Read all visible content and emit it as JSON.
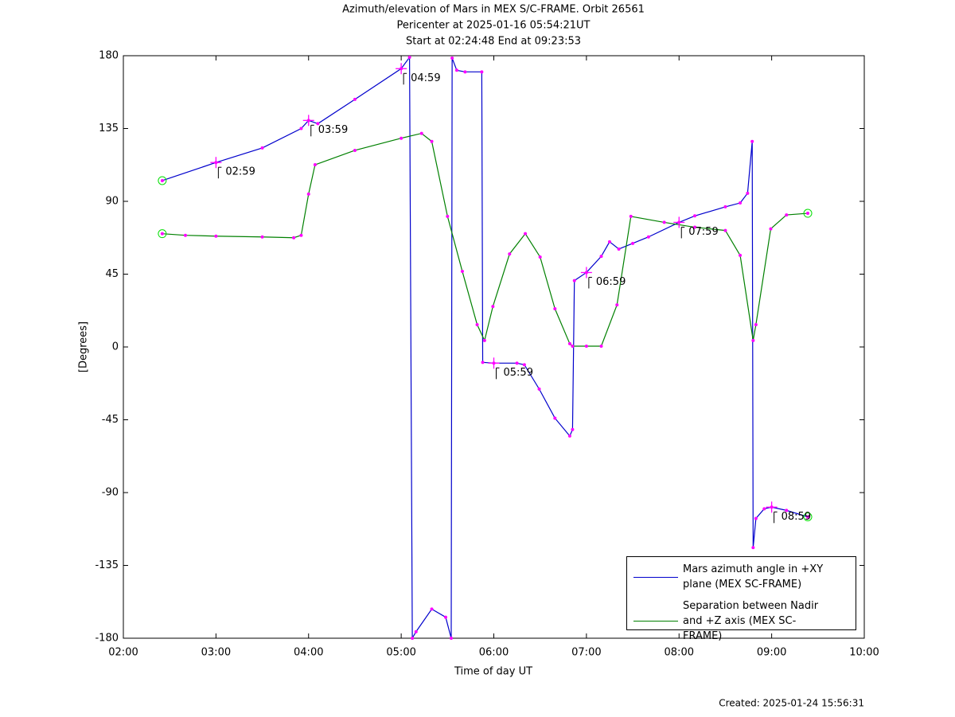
{
  "chart_data": {
    "type": "line",
    "title": "Azimuth/elevation of Mars in MEX S/C-FRAME.  Orbit 26561",
    "subtitle": "Pericenter at 2025-01-16 05:54:21UT",
    "subtitle2": "Start at 02:24:48 End at 09:23:53",
    "xlabel": "Time of day UT",
    "ylabel": "[Degrees]",
    "footnote": "Created: 2025-01-24 15:56:31",
    "xlim": [
      2,
      10
    ],
    "xticks": [
      {
        "value": 2,
        "label": "02:00"
      },
      {
        "value": 3,
        "label": "03:00"
      },
      {
        "value": 4,
        "label": "04:00"
      },
      {
        "value": 5,
        "label": "05:00"
      },
      {
        "value": 6,
        "label": "06:00"
      },
      {
        "value": 7,
        "label": "07:00"
      },
      {
        "value": 8,
        "label": "08:00"
      },
      {
        "value": 9,
        "label": "09:00"
      },
      {
        "value": 10,
        "label": "10:00"
      }
    ],
    "ylim": [
      -180,
      180
    ],
    "yticks": [
      180,
      135,
      90,
      45,
      0,
      -45,
      -90,
      -135,
      -180
    ],
    "grid": false,
    "legend": "lower right",
    "series": [
      {
        "name": "Mars azimuth angle in +XY plane (MEX SC-FRAME)",
        "color": "#0000cc",
        "x": [
          2.42,
          3.0,
          3.5,
          3.92,
          4.0,
          4.1,
          4.5,
          5.0,
          5.09,
          5.12,
          5.16,
          5.33,
          5.48,
          5.54,
          5.55,
          5.6,
          5.69,
          5.87,
          5.88,
          6.0,
          6.25,
          6.33,
          6.49,
          6.66,
          6.82,
          6.85,
          6.87,
          7.0,
          7.16,
          7.25,
          7.35,
          7.5,
          7.67,
          8.0,
          8.17,
          8.5,
          8.66,
          8.74,
          8.79,
          8.8,
          8.83,
          8.92,
          9.0,
          9.16,
          9.39
        ],
        "values": [
          102.8,
          114,
          123,
          135,
          140,
          138,
          153,
          172,
          179,
          -180,
          -176,
          -162,
          -167,
          -180,
          178.5,
          171,
          170,
          170,
          -9.5,
          -10,
          -10,
          -11,
          -26,
          -44,
          -55,
          -51,
          41,
          46,
          56,
          65,
          60.5,
          64,
          68,
          77,
          81,
          86.6,
          89,
          95,
          127,
          -124,
          -106,
          -100,
          -99,
          -101,
          -105
        ]
      },
      {
        "name": "Separation between Nadir and +Z axis (MEX SC-FRAME)",
        "color": "#008000",
        "x": [
          2.42,
          2.67,
          3.0,
          3.5,
          3.84,
          3.92,
          4.0,
          4.07,
          4.5,
          5.0,
          5.22,
          5.33,
          5.5,
          5.66,
          5.82,
          5.9,
          5.99,
          6.17,
          6.34,
          6.5,
          6.66,
          6.82,
          6.85,
          7.0,
          7.16,
          7.33,
          7.48,
          7.84,
          8.17,
          8.5,
          8.66,
          8.8,
          8.83,
          8.99,
          9.16,
          9.39
        ],
        "values": [
          70,
          69,
          68.5,
          68,
          67.5,
          69,
          94.5,
          112.6,
          121.5,
          129,
          132,
          127,
          80.7,
          46.7,
          13.8,
          4,
          25,
          57.5,
          70,
          55.6,
          23.6,
          2,
          0.5,
          0.5,
          0.5,
          26,
          80.7,
          77,
          74,
          72,
          56.6,
          4,
          13.8,
          73,
          81.6,
          82.6
        ]
      }
    ],
    "annotations": [
      {
        "text": "02:59",
        "x": 3.0,
        "y": 114
      },
      {
        "text": "03:59",
        "x": 4.0,
        "y": 140
      },
      {
        "text": "04:59",
        "x": 5.0,
        "y": 172
      },
      {
        "text": "05:59",
        "x": 6.0,
        "y": -10
      },
      {
        "text": "06:59",
        "x": 7.0,
        "y": 46
      },
      {
        "text": "07:59",
        "x": 8.0,
        "y": 77
      },
      {
        "text": "08:59",
        "x": 9.0,
        "y": -99
      }
    ]
  }
}
